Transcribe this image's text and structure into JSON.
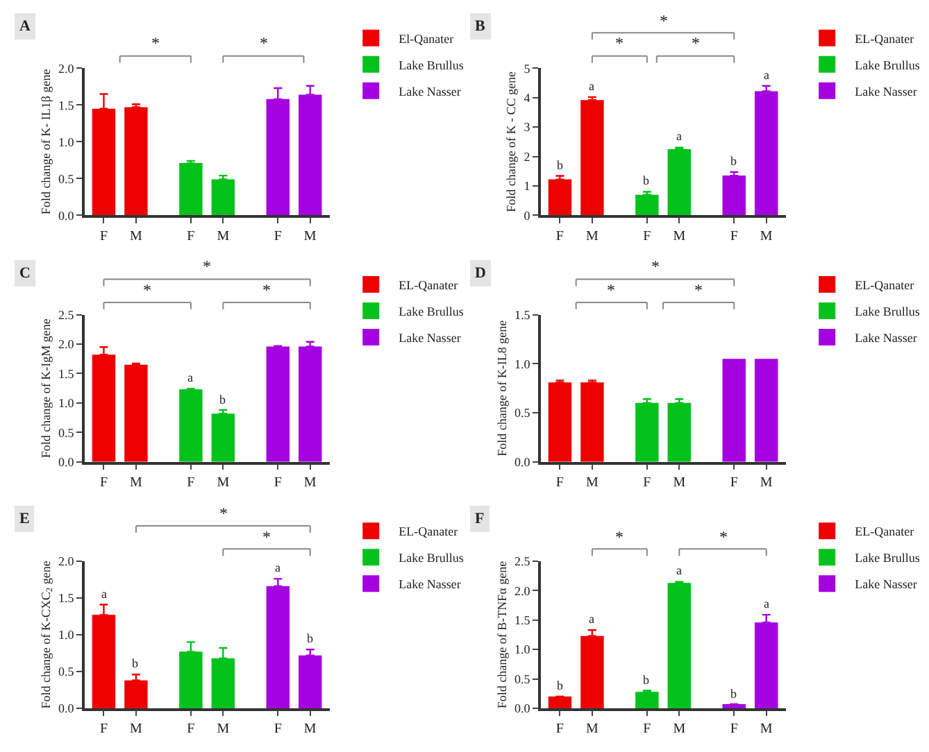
{
  "chart_data": [
    {
      "type": "bar",
      "title": "A",
      "ylabel": "Fold change of K- IL1β gene",
      "categories": [
        "F",
        "M",
        "F",
        "M",
        "F",
        "M"
      ],
      "legend": "right",
      "ylim": [
        0,
        2
      ],
      "yticks": [
        {
          "value": 0,
          "label": "0.0"
        },
        0.5,
        {
          "value": 1,
          "label": "1.0"
        },
        1.5,
        {
          "value": 2,
          "label": "2.0"
        }
      ],
      "annotations": [
        "*",
        "*"
      ],
      "series": [
        {
          "name": "El-Qanater",
          "color": "#ee0000",
          "values": [
            1.45,
            1.47,
            null,
            null,
            null,
            null
          ],
          "errors": [
            [
              1.45,
              1.65
            ],
            [
              1.47,
              1.51
            ],
            null,
            null,
            null,
            null
          ]
        },
        {
          "name": "Lake Brullus",
          "color": "#00c21a",
          "values": [
            null,
            null,
            0.71,
            0.49,
            null,
            null
          ],
          "errors": [
            null,
            null,
            [
              0.71,
              0.74
            ],
            [
              0.49,
              0.54
            ],
            null,
            null
          ]
        },
        {
          "name": "Lake Nasser",
          "color": "#a400e0",
          "values": [
            null,
            null,
            null,
            null,
            1.58,
            1.64
          ],
          "errors": [
            null,
            null,
            null,
            null,
            [
              1.58,
              1.73
            ],
            [
              1.64,
              1.76
            ]
          ]
        }
      ]
    },
    {
      "type": "bar",
      "title": "B",
      "ylabel": "Fold change of K - CC gene",
      "categories": [
        "F",
        "M",
        "F",
        "M",
        "F",
        "M"
      ],
      "legend": "right",
      "ylim": [
        0,
        5
      ],
      "yticks": [
        0,
        1,
        2,
        3,
        4,
        5
      ],
      "annotations": [
        "*",
        "*",
        "*"
      ],
      "series": [
        {
          "name": "EL-Qanater",
          "color": "#ee0000",
          "values": [
            1.22,
            3.92,
            null,
            null,
            null,
            null
          ],
          "errors": [
            [
              1.22,
              1.34
            ],
            [
              3.92,
              4.02
            ],
            null,
            null,
            null,
            null
          ],
          "value_labels": [
            "b",
            "a",
            null,
            null,
            null,
            null
          ]
        },
        {
          "name": "Lake Brullus",
          "color": "#00c21a",
          "values": [
            null,
            null,
            0.7,
            2.25,
            null,
            null
          ],
          "errors": [
            null,
            null,
            [
              0.7,
              0.8
            ],
            [
              2.25,
              2.3
            ],
            null,
            null
          ],
          "value_labels": [
            null,
            null,
            "b",
            "a",
            null,
            null
          ]
        },
        {
          "name": "Lake Nasser",
          "color": "#a400e0",
          "values": [
            null,
            null,
            null,
            null,
            1.35,
            4.22
          ],
          "errors": [
            null,
            null,
            null,
            null,
            [
              1.35,
              1.47
            ],
            [
              4.22,
              4.4
            ]
          ],
          "value_labels": [
            null,
            null,
            null,
            null,
            "b",
            "a"
          ]
        }
      ]
    },
    {
      "type": "bar",
      "title": "C",
      "ylabel": "Fold change of K-IgM gene",
      "categories": [
        "F",
        "M",
        "F",
        "M",
        "F",
        "M"
      ],
      "legend": "right",
      "ylim": [
        0,
        2.5
      ],
      "yticks": [
        {
          "value": 0,
          "label": "0.0"
        },
        0.5,
        {
          "value": 1,
          "label": "1.0"
        },
        1.5,
        {
          "value": 2,
          "label": "2.0"
        },
        2.5
      ],
      "annotations": [
        "*",
        "*",
        "*"
      ],
      "series": [
        {
          "name": "EL-Qanater",
          "color": "#ee0000",
          "values": [
            1.82,
            1.65,
            null,
            null,
            null,
            null
          ],
          "errors": [
            [
              1.82,
              1.95
            ],
            [
              1.65,
              1.67
            ],
            null,
            null,
            null,
            null
          ]
        },
        {
          "name": "Lake Brullus",
          "color": "#00c21a",
          "values": [
            null,
            null,
            1.23,
            0.82,
            null,
            null
          ],
          "errors": [
            null,
            null,
            [
              1.23,
              1.24
            ],
            [
              0.82,
              0.88
            ],
            null,
            null
          ],
          "value_labels": [
            null,
            null,
            "a",
            "b",
            null,
            null
          ]
        },
        {
          "name": "Lake Nasser",
          "color": "#a400e0",
          "values": [
            null,
            null,
            null,
            null,
            1.96,
            1.96
          ],
          "errors": [
            null,
            null,
            null,
            null,
            [
              1.96,
              1.97
            ],
            [
              1.96,
              2.04
            ]
          ]
        }
      ]
    },
    {
      "type": "bar",
      "title": "D",
      "ylabel": "Fold change of K-IL8 gene",
      "categories": [
        "F",
        "M",
        "F",
        "M",
        "F",
        "M"
      ],
      "legend": "right",
      "ylim": [
        0,
        1.5
      ],
      "yticks": [
        {
          "value": 0,
          "label": "0.0"
        },
        0.5,
        {
          "value": 1,
          "label": "1.0"
        },
        1.5
      ],
      "annotations": [
        "*",
        "*",
        "*"
      ],
      "series": [
        {
          "name": "EL-Qanater",
          "color": "#ee0000",
          "values": [
            0.81,
            0.81,
            null,
            null,
            null,
            null
          ],
          "errors": [
            [
              0.81,
              0.83
            ],
            [
              0.81,
              0.83
            ],
            null,
            null,
            null,
            null
          ]
        },
        {
          "name": "Lake Brullus",
          "color": "#00c21a",
          "values": [
            null,
            null,
            0.6,
            0.6,
            null,
            null
          ],
          "errors": [
            null,
            null,
            [
              0.6,
              0.64
            ],
            [
              0.6,
              0.64
            ],
            null,
            null
          ]
        },
        {
          "name": "Lake Nasser",
          "color": "#a400e0",
          "values": [
            null,
            null,
            null,
            null,
            1.05,
            1.05
          ]
        }
      ]
    },
    {
      "type": "bar",
      "title": "E",
      "ylabel": "Fold change of K-CXC$_{2}$ gene",
      "categories": [
        "F",
        "M",
        "F",
        "M",
        "F",
        "M"
      ],
      "legend": "right",
      "ylim": [
        0,
        2
      ],
      "yticks": [
        {
          "value": 0,
          "label": "0.0"
        },
        0.5,
        {
          "value": 1,
          "label": "1.0"
        },
        1.5,
        {
          "value": 2,
          "label": "2.0"
        }
      ],
      "annotations": [
        "*",
        "*"
      ],
      "series": [
        {
          "name": "EL-Qanater",
          "color": "#ee0000",
          "values": [
            1.27,
            0.38,
            null,
            null,
            null,
            null
          ],
          "errors": [
            [
              1.27,
              1.41
            ],
            [
              0.38,
              0.46
            ],
            null,
            null,
            null,
            null
          ],
          "value_labels": [
            "a",
            "b",
            null,
            null,
            null,
            null
          ]
        },
        {
          "name": "Lake Brullus",
          "color": "#00c21a",
          "values": [
            null,
            null,
            0.77,
            0.68,
            null,
            null
          ],
          "errors": [
            null,
            null,
            [
              0.77,
              0.9
            ],
            [
              0.68,
              0.82
            ],
            null,
            null
          ]
        },
        {
          "name": "Lake Nasser",
          "color": "#a400e0",
          "values": [
            null,
            null,
            null,
            null,
            1.66,
            0.72
          ],
          "errors": [
            null,
            null,
            null,
            null,
            [
              1.66,
              1.76
            ],
            [
              0.72,
              0.8
            ]
          ],
          "value_labels": [
            null,
            null,
            null,
            null,
            "a",
            "b"
          ]
        }
      ]
    },
    {
      "type": "bar",
      "title": "F",
      "ylabel": "Fold change of B-TNFα gene",
      "categories": [
        "F",
        "M",
        "F",
        "M",
        "F",
        "M"
      ],
      "legend": "right",
      "ylim": [
        0,
        2.5
      ],
      "yticks": [
        {
          "value": 0,
          "label": "0.0"
        },
        0.5,
        {
          "value": 1,
          "label": "1.0"
        },
        1.5,
        {
          "value": 2,
          "label": "2.0"
        },
        2.5
      ],
      "annotations": [
        "*",
        "*"
      ],
      "series": [
        {
          "name": "EL-Qanater",
          "color": "#ee0000",
          "values": [
            0.2,
            1.23,
            null,
            null,
            null,
            null
          ],
          "errors": [
            null,
            [
              1.23,
              1.33
            ],
            null,
            null,
            null,
            null
          ],
          "value_labels": [
            "b",
            "a",
            null,
            null,
            null,
            null
          ]
        },
        {
          "name": "Lake Brullus",
          "color": "#00c21a",
          "values": [
            null,
            null,
            0.28,
            2.13,
            null,
            null
          ],
          "errors": [
            null,
            null,
            [
              0.28,
              0.3
            ],
            [
              2.13,
              2.15
            ],
            null,
            null
          ],
          "value_labels": [
            null,
            null,
            "b",
            "a",
            null,
            null
          ]
        },
        {
          "name": "Lake Nasser",
          "color": "#a400e0",
          "values": [
            null,
            null,
            null,
            null,
            0.07,
            1.46
          ],
          "errors": [
            null,
            null,
            null,
            null,
            null,
            [
              1.46,
              1.59
            ]
          ],
          "value_labels": [
            null,
            null,
            null,
            null,
            "b",
            "a"
          ]
        }
      ]
    }
  ]
}
